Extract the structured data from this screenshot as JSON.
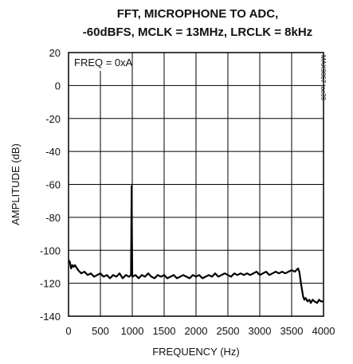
{
  "chart_data": {
    "type": "line",
    "title_lines": [
      "FFT, MICROPHONE TO ADC,",
      "-60dBFS, MCLK = 13MHz, LRCLK = 8kHz"
    ],
    "xlabel": "FREQUENCY (Hz)",
    "ylabel": "AMPLITUDE (dB)",
    "xlim": [
      0,
      4000
    ],
    "ylim": [
      -140,
      20
    ],
    "xticks": [
      0,
      500,
      1000,
      1500,
      2000,
      2500,
      3000,
      3500,
      4000
    ],
    "yticks": [
      20,
      0,
      -20,
      -40,
      -60,
      -80,
      -100,
      -120,
      -140
    ],
    "grid": true,
    "annotation": "FREQ = 0xA",
    "side_label": "MAX9867 toc39",
    "series": [
      {
        "color": "#000000",
        "points": [
          [
            0,
            -106
          ],
          [
            20,
            -107
          ],
          [
            40,
            -111
          ],
          [
            60,
            -109
          ],
          [
            80,
            -110
          ],
          [
            100,
            -109
          ],
          [
            150,
            -112
          ],
          [
            200,
            -114
          ],
          [
            250,
            -113
          ],
          [
            300,
            -115
          ],
          [
            350,
            -114
          ],
          [
            400,
            -116
          ],
          [
            450,
            -115
          ],
          [
            500,
            -114
          ],
          [
            550,
            -116
          ],
          [
            600,
            -115
          ],
          [
            650,
            -117
          ],
          [
            700,
            -115
          ],
          [
            750,
            -116
          ],
          [
            800,
            -114
          ],
          [
            850,
            -117
          ],
          [
            900,
            -115
          ],
          [
            950,
            -116
          ],
          [
            980,
            -115
          ],
          [
            985,
            -90
          ],
          [
            990,
            -61
          ],
          [
            995,
            -90
          ],
          [
            1000,
            -116
          ],
          [
            1050,
            -115
          ],
          [
            1100,
            -117
          ],
          [
            1150,
            -115
          ],
          [
            1200,
            -116
          ],
          [
            1250,
            -114
          ],
          [
            1300,
            -116
          ],
          [
            1350,
            -117
          ],
          [
            1400,
            -115
          ],
          [
            1450,
            -116
          ],
          [
            1500,
            -115
          ],
          [
            1550,
            -117
          ],
          [
            1600,
            -116
          ],
          [
            1650,
            -115
          ],
          [
            1700,
            -117
          ],
          [
            1750,
            -116
          ],
          [
            1800,
            -115
          ],
          [
            1850,
            -116
          ],
          [
            1900,
            -117
          ],
          [
            1950,
            -115
          ],
          [
            2000,
            -116
          ],
          [
            2050,
            -115
          ],
          [
            2100,
            -117
          ],
          [
            2150,
            -116
          ],
          [
            2200,
            -115
          ],
          [
            2250,
            -116
          ],
          [
            2300,
            -114
          ],
          [
            2350,
            -116
          ],
          [
            2400,
            -115
          ],
          [
            2450,
            -114
          ],
          [
            2500,
            -115
          ],
          [
            2550,
            -116
          ],
          [
            2600,
            -114
          ],
          [
            2650,
            -115
          ],
          [
            2700,
            -114
          ],
          [
            2750,
            -115
          ],
          [
            2800,
            -114
          ],
          [
            2850,
            -115
          ],
          [
            2900,
            -114
          ],
          [
            2950,
            -113
          ],
          [
            3000,
            -115
          ],
          [
            3050,
            -114
          ],
          [
            3100,
            -113
          ],
          [
            3150,
            -115
          ],
          [
            3200,
            -114
          ],
          [
            3250,
            -113
          ],
          [
            3300,
            -114
          ],
          [
            3350,
            -113
          ],
          [
            3400,
            -114
          ],
          [
            3450,
            -113
          ],
          [
            3500,
            -112
          ],
          [
            3550,
            -113
          ],
          [
            3600,
            -111
          ],
          [
            3620,
            -113
          ],
          [
            3650,
            -121
          ],
          [
            3680,
            -128
          ],
          [
            3700,
            -130
          ],
          [
            3720,
            -129
          ],
          [
            3750,
            -131
          ],
          [
            3780,
            -130
          ],
          [
            3800,
            -132
          ],
          [
            3830,
            -130
          ],
          [
            3860,
            -131
          ],
          [
            3900,
            -132
          ],
          [
            3930,
            -130
          ],
          [
            3960,
            -131
          ],
          [
            4000,
            -131
          ]
        ]
      }
    ]
  }
}
